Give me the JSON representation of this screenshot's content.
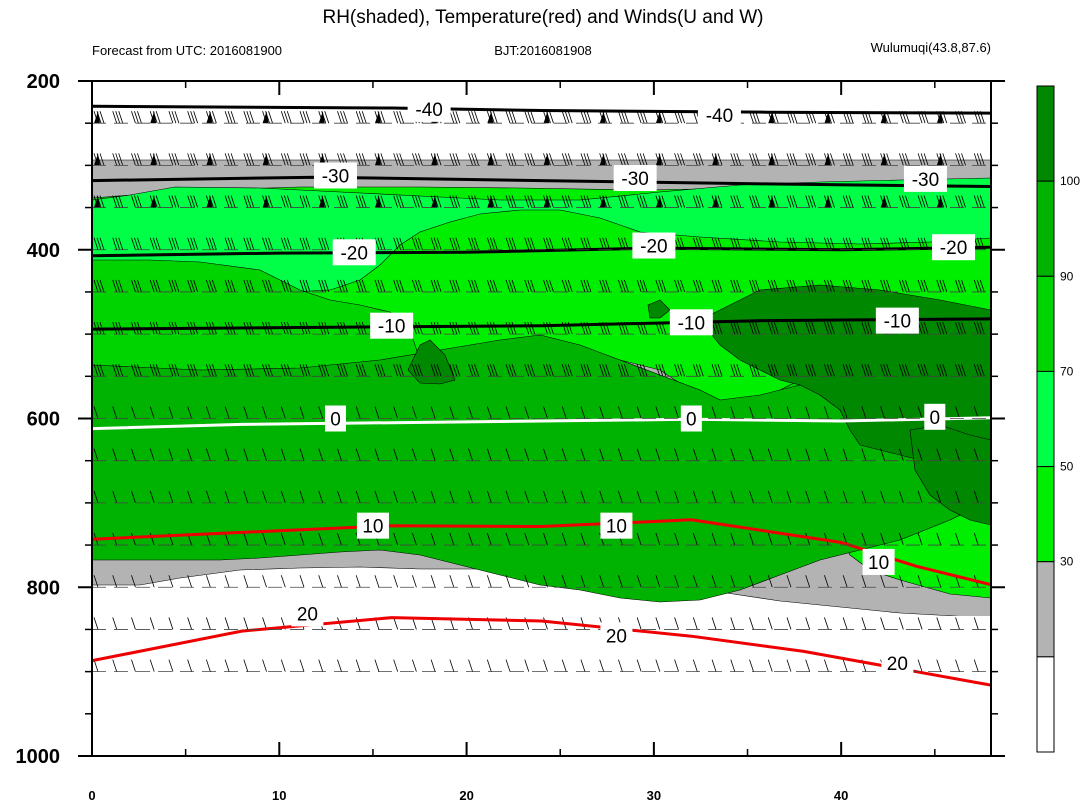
{
  "title": "RH(shaded), Temperature(red) and Winds(U and W)",
  "left_string": "Forecast from UTC: 2016081900",
  "center_string": "BJT:2016081908",
  "right_string": "Wulumuqi(43.8,87.6)",
  "colors": {
    "rh_levels": [
      "#ffffff",
      "#b3b3b3",
      "#00ee00",
      "#00ff47",
      "#00d400",
      "#00b300",
      "#008800"
    ],
    "temperature": "#ee0000",
    "isotherm_cold": "#000000",
    "freezing_level": "#ffffff"
  },
  "chart_data": {
    "type": "contour",
    "x": {
      "ticks": [
        0,
        10,
        20,
        30,
        40
      ],
      "range": [
        0,
        48
      ]
    },
    "y": {
      "ticks": [
        200,
        400,
        600,
        800,
        1000
      ],
      "range": [
        200,
        1000
      ],
      "reversed": true,
      "minor_ticks": [
        250,
        300,
        350,
        450,
        500,
        550,
        650,
        700,
        750,
        850,
        900,
        950
      ]
    },
    "colorbar": {
      "labels": [
        "30",
        "50",
        "70",
        "90",
        "100"
      ],
      "levels": [
        30,
        50,
        70,
        90,
        100
      ]
    },
    "contour_labels": [
      {
        "text": "-40",
        "x": 18,
        "y": 233,
        "color": "black"
      },
      {
        "text": "-40",
        "x": 33.5,
        "y": 240,
        "color": "black"
      },
      {
        "text": "-30",
        "x": 13,
        "y": 312,
        "color": "black"
      },
      {
        "text": "-30",
        "x": 29,
        "y": 315,
        "color": "black"
      },
      {
        "text": "-30",
        "x": 44.5,
        "y": 316,
        "color": "black"
      },
      {
        "text": "-20",
        "x": 14,
        "y": 403,
        "color": "black"
      },
      {
        "text": "-20",
        "x": 30,
        "y": 395,
        "color": "black"
      },
      {
        "text": "-20",
        "x": 46,
        "y": 397,
        "color": "black"
      },
      {
        "text": "-10",
        "x": 16,
        "y": 490,
        "color": "black"
      },
      {
        "text": "-10",
        "x": 32,
        "y": 486,
        "color": "black"
      },
      {
        "text": "-10",
        "x": 43,
        "y": 484,
        "color": "black"
      },
      {
        "text": "0",
        "x": 13,
        "y": 600,
        "color": "white"
      },
      {
        "text": "0",
        "x": 32,
        "y": 600,
        "color": "white"
      },
      {
        "text": "0",
        "x": 45,
        "y": 598,
        "color": "white"
      },
      {
        "text": "10",
        "x": 15,
        "y": 727,
        "color": "red"
      },
      {
        "text": "10",
        "x": 28,
        "y": 727,
        "color": "red"
      },
      {
        "text": "10",
        "x": 42,
        "y": 770,
        "color": "red"
      },
      {
        "text": "20",
        "x": 11.5,
        "y": 831,
        "color": "red"
      },
      {
        "text": "20",
        "x": 28,
        "y": 857,
        "color": "red"
      },
      {
        "text": "20",
        "x": 43,
        "y": 890,
        "color": "red"
      }
    ],
    "isotherms": [
      {
        "label": "-40",
        "color": "black",
        "x": [
          0,
          16,
          24,
          36,
          48
        ],
        "y": [
          230,
          232,
          235,
          237,
          238
        ]
      },
      {
        "label": "-30",
        "color": "black",
        "x": [
          0,
          12,
          24,
          36,
          48
        ],
        "y": [
          318,
          314,
          318,
          322,
          325
        ]
      },
      {
        "label": "-20",
        "color": "black",
        "x": [
          0,
          10,
          20,
          30,
          40,
          48
        ],
        "y": [
          407,
          404,
          403,
          398,
          400,
          397
        ]
      },
      {
        "label": "-10",
        "color": "black",
        "x": [
          0,
          12,
          24,
          36,
          48
        ],
        "y": [
          494,
          492,
          490,
          484,
          482
        ]
      },
      {
        "label": "0",
        "color": "white",
        "x": [
          0,
          8,
          16,
          24,
          32,
          40,
          48
        ],
        "y": [
          612,
          607,
          605,
          603,
          601,
          603,
          599
        ]
      },
      {
        "label": "10",
        "color": "red",
        "x": [
          0,
          8,
          16,
          24,
          32,
          40,
          44,
          48
        ],
        "y": [
          743,
          735,
          727,
          728,
          720,
          747,
          775,
          797
        ]
      },
      {
        "label": "20",
        "color": "red",
        "x": [
          0,
          8,
          16,
          24,
          32,
          38,
          42,
          48
        ],
        "y": [
          887,
          852,
          836,
          840,
          858,
          876,
          892,
          916
        ]
      }
    ]
  }
}
